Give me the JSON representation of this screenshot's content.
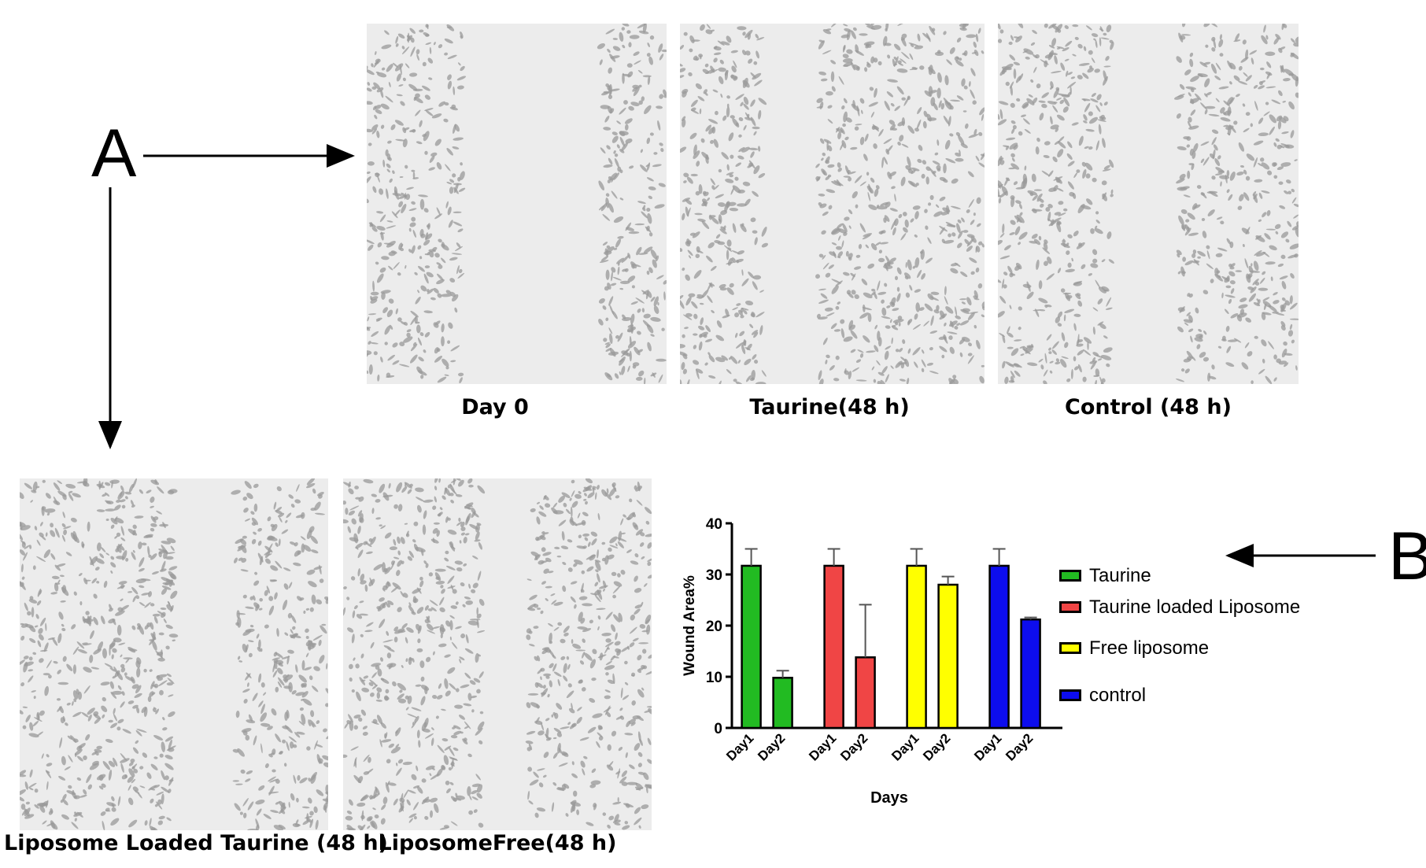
{
  "panels": {
    "a": "A",
    "b": "B"
  },
  "micrographs": [
    {
      "id": "day0",
      "caption": "Day 0"
    },
    {
      "id": "taurine",
      "caption": "Taurine(48 h)"
    },
    {
      "id": "control",
      "caption": "Control (48 h)"
    },
    {
      "id": "lip_loaded",
      "caption": "Liposome Loaded Taurine (48 h)"
    },
    {
      "id": "lip_free",
      "caption": "LiposomeFree(48 h)"
    }
  ],
  "chart_data": {
    "type": "bar",
    "xlabel": "Days",
    "ylabel": "Wound Area%",
    "ylim": [
      0,
      40
    ],
    "yticks": [
      0,
      10,
      20,
      30,
      40
    ],
    "grid": false,
    "legend_position": "right",
    "groups": [
      {
        "series": "Taurine",
        "color": "#22bb22",
        "bars": [
          {
            "label": "Day1",
            "value": 31.7,
            "error": 3.3
          },
          {
            "label": "Day2",
            "value": 9.8,
            "error": 1.4
          }
        ]
      },
      {
        "series": "Taurine loaded Liposome",
        "color": "#f04545",
        "bars": [
          {
            "label": "Day1",
            "value": 31.7,
            "error": 3.3
          },
          {
            "label": "Day2",
            "value": 13.8,
            "error": 10.3
          }
        ]
      },
      {
        "series": "Free liposome",
        "color": "#ffff00",
        "bars": [
          {
            "label": "Day1",
            "value": 31.7,
            "error": 3.3
          },
          {
            "label": "Day2",
            "value": 28.0,
            "error": 1.6
          }
        ]
      },
      {
        "series": "control",
        "color": "#0d0dee",
        "bars": [
          {
            "label": "Day1",
            "value": 31.7,
            "error": 3.3
          },
          {
            "label": "Day2",
            "value": 21.2,
            "error": 0.4
          }
        ]
      }
    ]
  }
}
